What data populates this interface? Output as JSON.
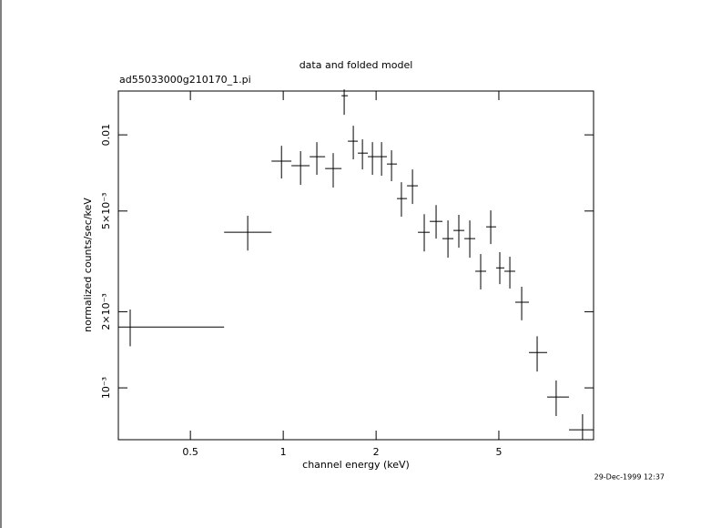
{
  "chart_data": {
    "type": "errorbar",
    "title": "data and folded model",
    "subtitle": "ad55033000g210170_1.pi",
    "xlabel": "channel energy (keV)",
    "ylabel": "normalized counts/sec/keV",
    "timestamp": "29-Dec-1999 12:37",
    "xscale": "log",
    "yscale": "log",
    "color": "#000000",
    "xlim": [
      0.292,
      10.14
    ],
    "ylim": [
      0.000624,
      0.0149
    ],
    "xticks": [
      0.5,
      1,
      2,
      5
    ],
    "yticks": [
      {
        "value": 0.001,
        "label": "10⁻³"
      },
      {
        "value": 0.002,
        "label": "2×10⁻³"
      },
      {
        "value": 0.005,
        "label": "5×10⁻³"
      },
      0.01
    ],
    "x": [
      0.319,
      0.767,
      0.987,
      1.138,
      1.285,
      1.452,
      1.576,
      1.687,
      1.806,
      1.946,
      2.083,
      2.244,
      2.416,
      2.624,
      2.865,
      3.13,
      3.42,
      3.709,
      4.025,
      4.366,
      4.706,
      5.035,
      5.428,
      5.929,
      6.655,
      7.67,
      9.34
    ],
    "x_low": [
      0.292,
      0.643,
      0.916,
      1.063,
      1.218,
      1.367,
      1.545,
      1.62,
      1.745,
      1.88,
      2.012,
      2.168,
      2.337,
      2.519,
      2.733,
      2.985,
      3.282,
      3.562,
      3.865,
      4.193,
      4.548,
      4.899,
      5.211,
      5.651,
      6.26,
      7.17,
      8.44
    ],
    "x_high": [
      0.643,
      0.916,
      1.063,
      1.218,
      1.367,
      1.545,
      1.62,
      1.745,
      1.88,
      2.012,
      2.168,
      2.337,
      2.519,
      2.733,
      2.985,
      3.282,
      3.562,
      3.865,
      4.193,
      4.548,
      4.899,
      5.211,
      5.651,
      6.26,
      7.17,
      8.44,
      10.14
    ],
    "y": [
      0.00174,
      0.00412,
      0.00787,
      0.00755,
      0.0082,
      0.00736,
      0.01428,
      0.00944,
      0.00847,
      0.0082,
      0.0082,
      0.00767,
      0.0056,
      0.00629,
      0.00412,
      0.00455,
      0.00389,
      0.00419,
      0.00389,
      0.00289,
      0.00433,
      0.00298,
      0.00289,
      0.00218,
      0.00138,
      0.00092,
      0.000683
    ],
    "y_low": [
      0.00146,
      0.00349,
      0.00672,
      0.00634,
      0.00695,
      0.00619,
      0.012,
      0.008,
      0.0073,
      0.00695,
      0.00689,
      0.00656,
      0.00475,
      0.00533,
      0.00346,
      0.00389,
      0.00327,
      0.00358,
      0.00327,
      0.00245,
      0.0037,
      0.00257,
      0.00247,
      0.00185,
      0.00116,
      0.000774,
      0.000624
    ],
    "y_high": [
      0.00204,
      0.00479,
      0.00905,
      0.00862,
      0.00936,
      0.00847,
      0.01513,
      0.01086,
      0.0096,
      0.00936,
      0.00936,
      0.00869,
      0.0065,
      0.0073,
      0.00486,
      0.00528,
      0.00459,
      0.00483,
      0.00459,
      0.00338,
      0.00503,
      0.00344,
      0.0033,
      0.00251,
      0.0016,
      0.00107,
      0.000787
    ]
  }
}
